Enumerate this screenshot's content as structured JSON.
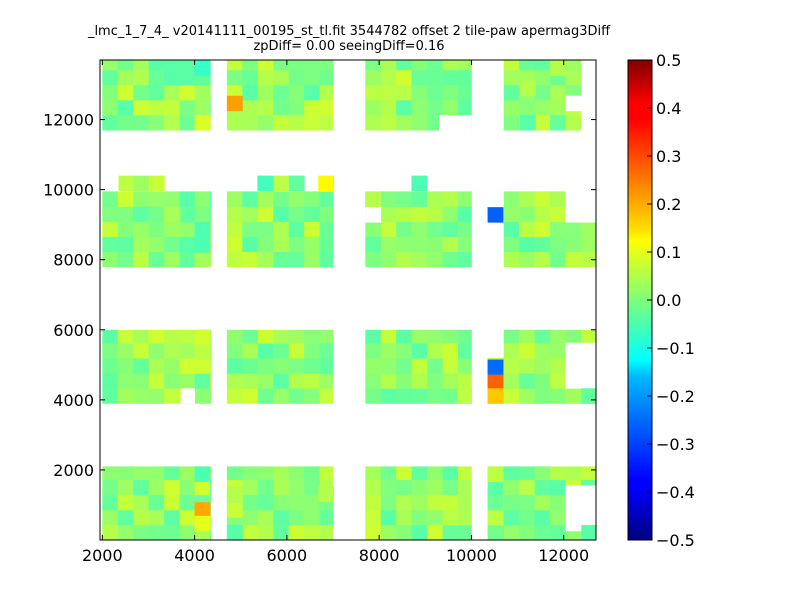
{
  "chart_data": {
    "type": "heatmap",
    "title_line1": "_lmc_1_7_4_ v20141111_00195_st_tl.fit 3544782 offset 2 tile-paw apermag3Diff",
    "title_line2": "zpDiff= 0.00 seeingDiff=0.16",
    "xlim": [
      1950,
      12700
    ],
    "ylim": [
      0,
      13700
    ],
    "x_ticks": [
      2000,
      4000,
      6000,
      8000,
      10000,
      12000
    ],
    "y_ticks": [
      2000,
      4000,
      6000,
      8000,
      10000,
      12000
    ],
    "colorbar": {
      "colormap": "jet",
      "range": [
        -0.5,
        0.5
      ],
      "ticks": [
        "-0.5",
        "-0.4",
        "-0.3",
        "-0.2",
        "-0.1",
        "0.0",
        "0.1",
        "0.2",
        "0.3",
        "0.4",
        "0.5"
      ]
    },
    "cell_size": [
      335,
      430
    ],
    "base_value": 0.02,
    "tiles": [
      {
        "x": [
          2000,
          4000
        ],
        "y": [
          0,
          2100
        ]
      },
      {
        "x": [
          4000,
          4350
        ],
        "y": [
          0,
          2100
        ]
      },
      {
        "x": [
          4700,
          7000
        ],
        "y": [
          0,
          2100
        ]
      },
      {
        "x": [
          7700,
          10000
        ],
        "y": [
          0,
          2100
        ]
      },
      {
        "x": [
          10350,
          10700
        ],
        "y": [
          0,
          2100
        ]
      },
      {
        "x": [
          10700,
          12700
        ],
        "y": [
          0,
          2100
        ]
      },
      {
        "x": [
          2000,
          4000
        ],
        "y": [
          3900,
          6000
        ]
      },
      {
        "x": [
          4000,
          4350
        ],
        "y": [
          3900,
          6000
        ]
      },
      {
        "x": [
          4700,
          7000
        ],
        "y": [
          3900,
          6000
        ]
      },
      {
        "x": [
          7700,
          10000
        ],
        "y": [
          3900,
          6000
        ]
      },
      {
        "x": [
          10350,
          10700
        ],
        "y": [
          3900,
          5200
        ]
      },
      {
        "x": [
          10700,
          12700
        ],
        "y": [
          3900,
          6000
        ]
      },
      {
        "x": [
          2000,
          4000
        ],
        "y": [
          7800,
          9950
        ]
      },
      {
        "x": [
          4000,
          4350
        ],
        "y": [
          7800,
          9950
        ]
      },
      {
        "x": [
          4700,
          7000
        ],
        "y": [
          7800,
          9950
        ]
      },
      {
        "x": [
          7700,
          10000
        ],
        "y": [
          7800,
          9950
        ]
      },
      {
        "x": [
          10700,
          12700
        ],
        "y": [
          7800,
          9950
        ]
      },
      {
        "x": [
          2000,
          4000
        ],
        "y": [
          11700,
          13700
        ]
      },
      {
        "x": [
          4000,
          4350
        ],
        "y": [
          11700,
          13700
        ]
      },
      {
        "x": [
          4700,
          7000
        ],
        "y": [
          11700,
          13700
        ]
      },
      {
        "x": [
          7700,
          10000
        ],
        "y": [
          11700,
          13700
        ]
      },
      {
        "x": [
          10700,
          12700
        ],
        "y": [
          11700,
          13700
        ]
      }
    ],
    "extra_cells": [
      {
        "x": 2350,
        "y": 9970,
        "w": 335,
        "h": 430,
        "v": 0.06
      },
      {
        "x": 2680,
        "y": 9970,
        "w": 335,
        "h": 430,
        "v": 0.03
      },
      {
        "x": 3010,
        "y": 9970,
        "w": 335,
        "h": 430,
        "v": 0.07
      },
      {
        "x": 5360,
        "y": 9970,
        "w": 335,
        "h": 430,
        "v": -0.06
      },
      {
        "x": 5700,
        "y": 9970,
        "w": 335,
        "h": 430,
        "v": 0.06
      },
      {
        "x": 6040,
        "y": 9970,
        "w": 335,
        "h": 430,
        "v": -0.03
      },
      {
        "x": 6680,
        "y": 9970,
        "w": 335,
        "h": 430,
        "v": 0.13
      },
      {
        "x": 8700,
        "y": 9970,
        "w": 335,
        "h": 430,
        "v": -0.05
      },
      {
        "x": 7700,
        "y": 9500,
        "w": 335,
        "h": 430,
        "v": 0.05
      },
      {
        "x": 7700,
        "y": 9070,
        "w": 335,
        "h": 430,
        "v": null
      },
      {
        "x": 10350,
        "y": 9070,
        "w": 335,
        "h": 430,
        "v": -0.28
      },
      {
        "x": 12040,
        "y": 9070,
        "w": 660,
        "h": 1300,
        "v": null
      },
      {
        "x": 4700,
        "y": 12250,
        "w": 335,
        "h": 430,
        "v": 0.22
      },
      {
        "x": 4350,
        "y": 11700,
        "w": 335,
        "h": 2000,
        "v": null
      },
      {
        "x": 4000,
        "y": 13260,
        "w": 335,
        "h": 430,
        "v": -0.07
      },
      {
        "x": 4000,
        "y": 11700,
        "w": 335,
        "h": 430,
        "v": 0.09
      },
      {
        "x": 9300,
        "y": 11700,
        "w": 700,
        "h": 430,
        "v": null
      },
      {
        "x": 11050,
        "y": 11700,
        "w": 335,
        "h": 430,
        "v": -0.04
      },
      {
        "x": 12040,
        "y": 12250,
        "w": 335,
        "h": 430,
        "v": null
      },
      {
        "x": 12380,
        "y": 11700,
        "w": 320,
        "h": 2000,
        "v": null
      },
      {
        "x": 12040,
        "y": 11700,
        "w": 335,
        "h": 430,
        "v": 0.05
      },
      {
        "x": 4000,
        "y": 5570,
        "w": 335,
        "h": 430,
        "v": 0.08
      },
      {
        "x": 4000,
        "y": 5140,
        "w": 335,
        "h": 430,
        "v": 0.06
      },
      {
        "x": 3700,
        "y": 3900,
        "w": 300,
        "h": 430,
        "v": null
      },
      {
        "x": 12040,
        "y": 4330,
        "w": 660,
        "h": 1300,
        "v": null
      },
      {
        "x": 12380,
        "y": 3900,
        "w": 320,
        "h": 430,
        "v": -0.03
      },
      {
        "x": 10350,
        "y": 4720,
        "w": 335,
        "h": 430,
        "v": -0.27
      },
      {
        "x": 10350,
        "y": 4290,
        "w": 335,
        "h": 430,
        "v": 0.28
      },
      {
        "x": 10350,
        "y": 3900,
        "w": 335,
        "h": 430,
        "v": 0.18
      },
      {
        "x": 9700,
        "y": 3900,
        "w": 300,
        "h": 430,
        "v": 0.06
      },
      {
        "x": 4000,
        "y": 650,
        "w": 335,
        "h": 430,
        "v": 0.21
      },
      {
        "x": 4000,
        "y": 260,
        "w": 335,
        "h": 430,
        "v": 0.1
      },
      {
        "x": 4000,
        "y": 1670,
        "w": 335,
        "h": 430,
        "v": -0.05
      },
      {
        "x": 10350,
        "y": 1670,
        "w": 335,
        "h": 430,
        "v": 0.06
      },
      {
        "x": 12040,
        "y": 260,
        "w": 660,
        "h": 1300,
        "v": null
      },
      {
        "x": 4700,
        "y": 650,
        "w": 335,
        "h": 430,
        "v": 0.07
      },
      {
        "x": 4700,
        "y": 1100,
        "w": 335,
        "h": 430,
        "v": 0.05
      },
      {
        "x": 6680,
        "y": 1100,
        "w": 335,
        "h": 430,
        "v": 0.05
      },
      {
        "x": 12380,
        "y": 0,
        "w": 320,
        "h": 430,
        "v": -0.04
      },
      {
        "x": 2000,
        "y": 0,
        "w": 335,
        "h": 430,
        "v": 0.05
      },
      {
        "x": 4700,
        "y": 0,
        "w": 335,
        "h": 430,
        "v": -0.04
      },
      {
        "x": 11050,
        "y": 12680,
        "w": 335,
        "h": 430,
        "v": 0.05
      },
      {
        "x": 11700,
        "y": 13260,
        "w": 335,
        "h": 430,
        "v": 0.05
      },
      {
        "x": 3700,
        "y": 9070,
        "w": 300,
        "h": 430,
        "v": -0.03
      },
      {
        "x": 4000,
        "y": 8210,
        "w": 335,
        "h": 860,
        "v": -0.05
      }
    ]
  }
}
